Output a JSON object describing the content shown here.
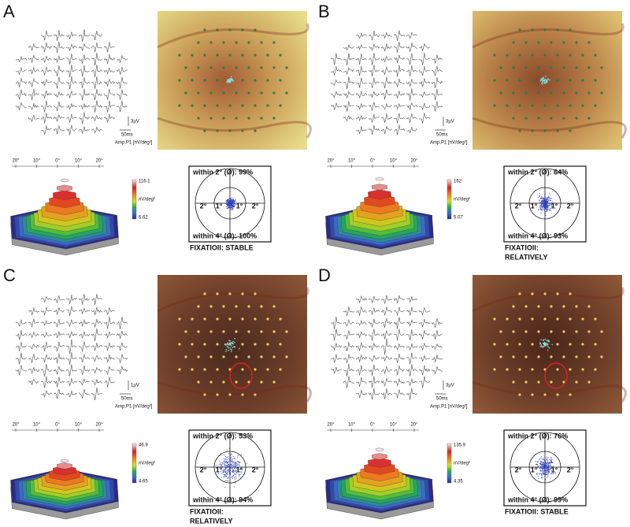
{
  "panels": [
    {
      "letter": "A",
      "scale_voltage": "3µV",
      "scale_time": "50ms",
      "amp_label": "Amp.P1 [nV/deg²]",
      "axis_ticks": [
        "20°",
        "10°",
        "0°",
        "10°",
        "20°"
      ],
      "colorbar": {
        "max": "116.1",
        "unit": "nV/deg²",
        "min": "6.62"
      },
      "fixation": {
        "within_2": "within 2° (Ø): 99%",
        "within_4": "within 4° (Ø): 100%",
        "ring_labels": [
          "2°",
          "1°",
          "1°",
          "2°"
        ],
        "status": [
          "FIXATIOII: STABLE"
        ]
      }
    },
    {
      "letter": "B",
      "scale_voltage": "3µV",
      "scale_time": "50ms",
      "amp_label": "Amp.P1 [nV/deg²]",
      "axis_ticks": [
        "20°",
        "10°",
        "0°",
        "10°",
        "20°"
      ],
      "colorbar": {
        "max": "162",
        "unit": "nV/deg²",
        "min": "5.07"
      },
      "fixation": {
        "within_2": "within 2° (Ø): 64%",
        "within_4": "within 4° (Ø): 93%",
        "ring_labels": [
          "2°",
          "1°",
          "1°",
          "2°"
        ],
        "status": [
          "FIXATIOII:",
          "RELATIVELY"
        ]
      }
    },
    {
      "letter": "C",
      "scale_voltage": "1µV",
      "scale_time": "50ms",
      "amp_label": "Amp.P1 [nV/deg²]",
      "axis_ticks": [
        "20°",
        "10°",
        "0°",
        "10°",
        "20°"
      ],
      "colorbar": {
        "max": "46.9",
        "unit": "nV/deg²",
        "min": "4.65"
      },
      "fixation": {
        "within_2": "within 2° (Ø): 53%",
        "within_4": "within 4° (Ø): 94%",
        "ring_labels": [
          "2°",
          "1°",
          "1°",
          "2°"
        ],
        "status": [
          "FIXATIOII:",
          "RELATIVELY"
        ]
      }
    },
    {
      "letter": "D",
      "scale_voltage": "3µV",
      "scale_time": "50ms",
      "amp_label": "Amp.P1 [nV/deg²]",
      "axis_ticks": [
        "20°",
        "10°",
        "0°",
        "10°",
        "20°"
      ],
      "colorbar": {
        "max": "135.9",
        "unit": "nV/deg²",
        "min": "4.35"
      },
      "fixation": {
        "within_2": "within 2° (Ø): 76%",
        "within_4": "within 4° (Ø): 99%",
        "ring_labels": [
          "2°",
          "1°",
          "1°",
          "2°"
        ],
        "status": [
          "FIXATIOII: STABLE"
        ]
      }
    }
  ]
}
